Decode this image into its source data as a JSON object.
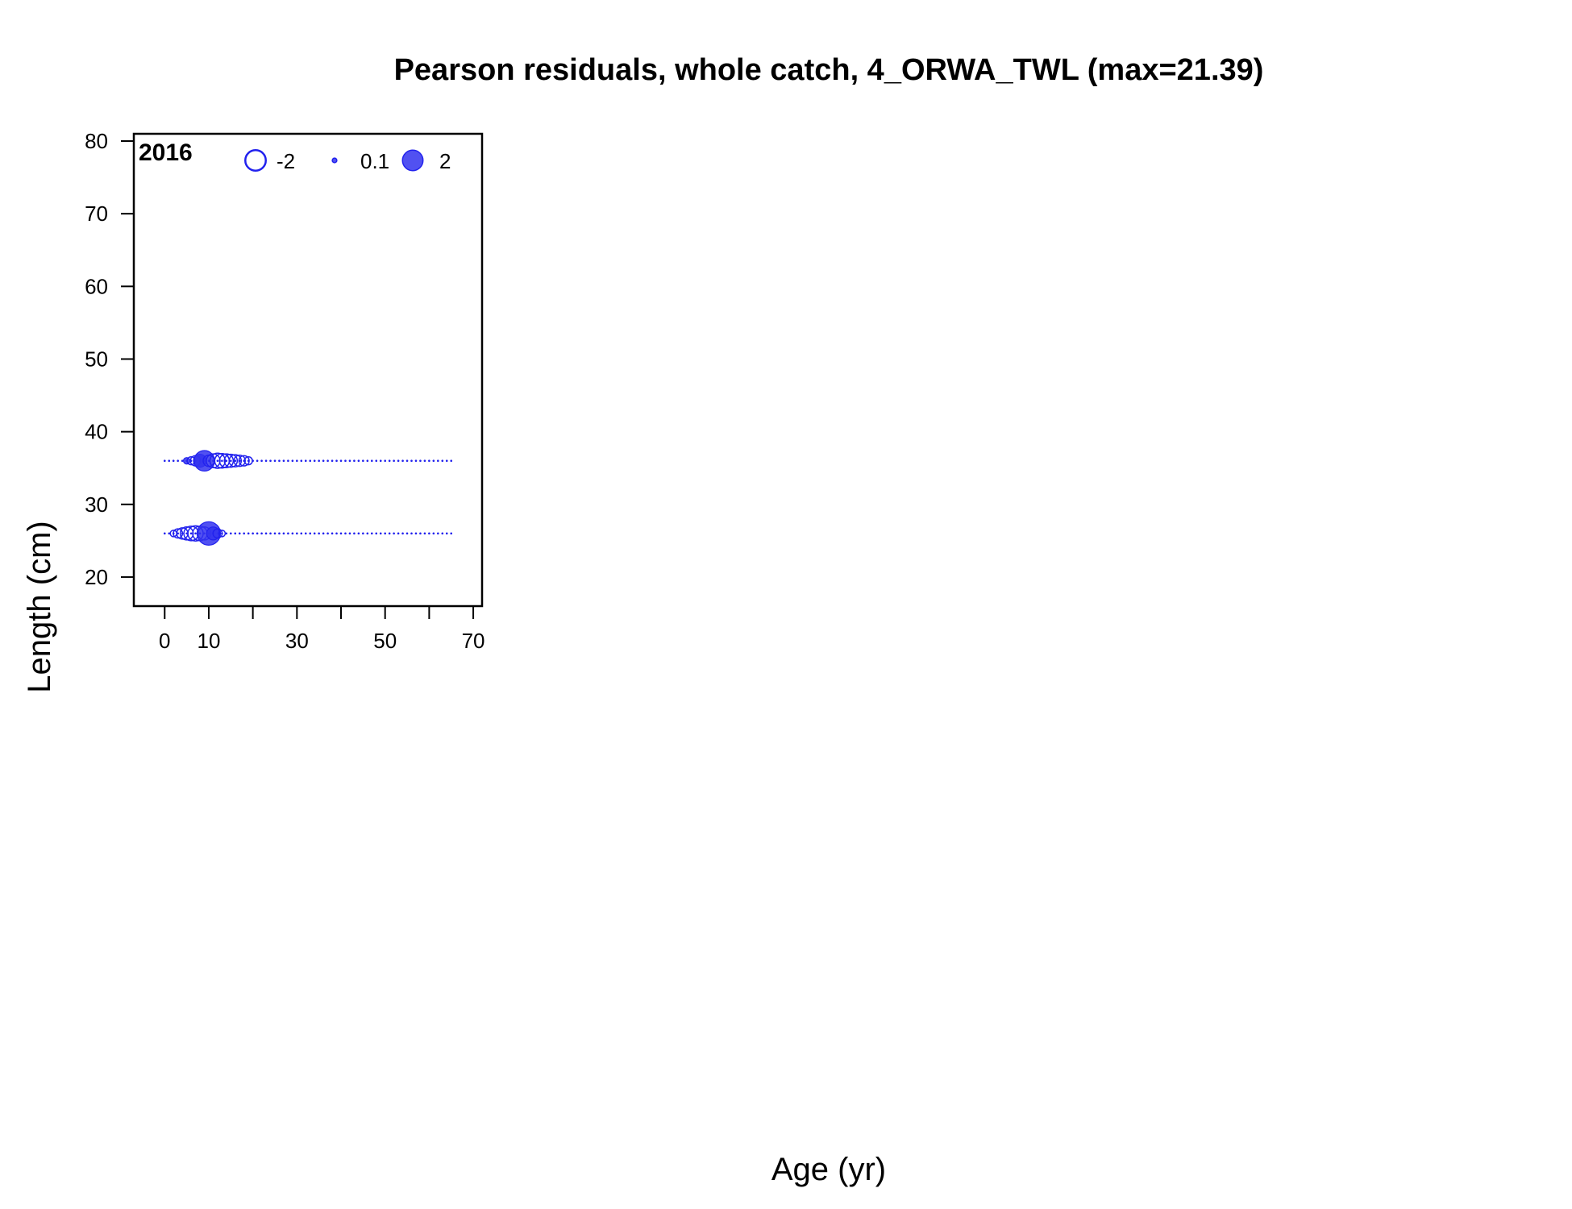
{
  "chart_data": {
    "type": "scatter",
    "title": "Pearson residuals, whole catch, 4_ORWA_TWL (max=21.39)",
    "xlabel": "Age (yr)",
    "ylabel": "Length (cm)",
    "panel_label": "2016",
    "xlim": [
      -7,
      72
    ],
    "ylim": [
      16,
      81
    ],
    "x_ticks": [
      0,
      10,
      20,
      30,
      40,
      50,
      60,
      70
    ],
    "x_tick_labels": [
      {
        "value": 0,
        "label": "0"
      },
      {
        "value": 10,
        "label": "10"
      },
      {
        "value": 30,
        "label": "30"
      },
      {
        "value": 50,
        "label": "50"
      },
      {
        "value": 70,
        "label": "70"
      }
    ],
    "y_ticks": [
      {
        "value": 20,
        "label": "20"
      },
      {
        "value": 30,
        "label": "30"
      },
      {
        "value": 40,
        "label": "40"
      },
      {
        "value": 50,
        "label": "50"
      },
      {
        "value": 60,
        "label": "60"
      },
      {
        "value": 70,
        "label": "70"
      },
      {
        "value": 80,
        "label": "80"
      }
    ],
    "legend": {
      "placement": "top",
      "entries": [
        {
          "value": -2,
          "label": "-2"
        },
        {
          "value": 0.1,
          "label": "0.1"
        },
        {
          "value": 2,
          "label": "2"
        }
      ]
    },
    "colors": {
      "stroke": "#2222ee",
      "fill": "#3333ee",
      "fill_opacity": 0.85
    },
    "series": [
      {
        "length": 36,
        "ages": [
          0,
          65
        ],
        "points": [
          {
            "age": 5,
            "residual": 0.2
          },
          {
            "age": 6,
            "residual": -0.3
          },
          {
            "age": 7,
            "residual": -0.5
          },
          {
            "age": 8,
            "residual": 0.8
          },
          {
            "age": 9,
            "residual": 2.0
          },
          {
            "age": 10,
            "residual": -0.6
          },
          {
            "age": 11,
            "residual": -0.9
          },
          {
            "age": 12,
            "residual": -1.1
          },
          {
            "age": 13,
            "residual": -1.0
          },
          {
            "age": 14,
            "residual": -0.9
          },
          {
            "age": 15,
            "residual": -0.8
          },
          {
            "age": 16,
            "residual": -0.7
          },
          {
            "age": 17,
            "residual": -0.6
          },
          {
            "age": 18,
            "residual": -0.5
          },
          {
            "age": 19,
            "residual": -0.3
          }
        ]
      },
      {
        "length": 26,
        "ages": [
          0,
          65
        ],
        "points": [
          {
            "age": 2,
            "residual": -0.2
          },
          {
            "age": 3,
            "residual": -0.4
          },
          {
            "age": 4,
            "residual": -0.6
          },
          {
            "age": 5,
            "residual": -0.8
          },
          {
            "age": 6,
            "residual": -1.0
          },
          {
            "age": 7,
            "residual": -1.1
          },
          {
            "age": 8,
            "residual": -1.0
          },
          {
            "age": 9,
            "residual": -0.8
          },
          {
            "age": 10,
            "residual": 2.6
          },
          {
            "age": 11,
            "residual": 0.8
          },
          {
            "age": 12,
            "residual": -0.4
          },
          {
            "age": 13,
            "residual": -0.2
          }
        ]
      }
    ]
  }
}
